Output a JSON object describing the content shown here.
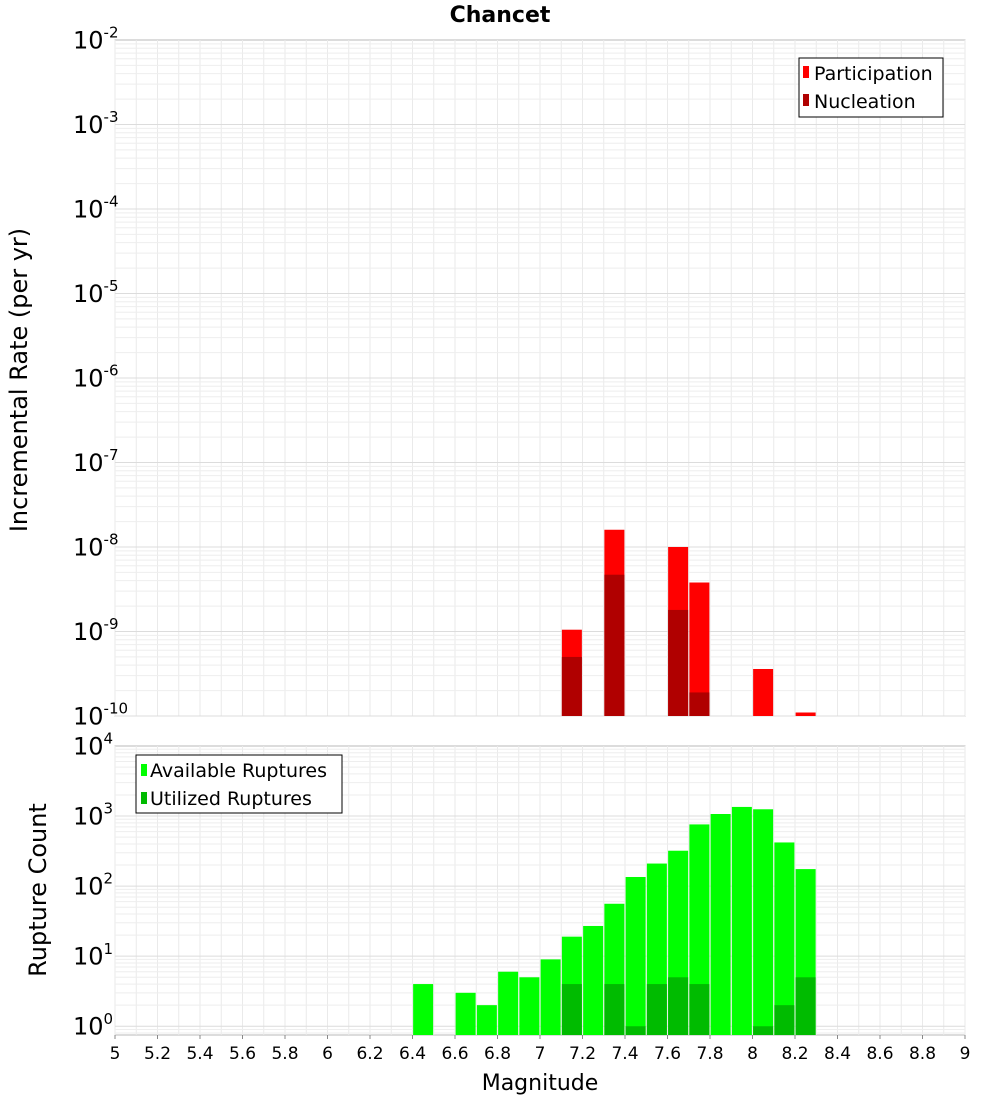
{
  "chart_data": [
    {
      "type": "bar",
      "title": "Chancet",
      "xlabel": "",
      "ylabel": "Incremental Rate (per yr)",
      "xlim": [
        5,
        9
      ],
      "ylim": [
        1e-10,
        0.01
      ],
      "yscale": "log",
      "grid": true,
      "legend_position": "top-right",
      "y_tick_labels": [
        {
          "base": "10",
          "exp": "-10"
        },
        {
          "base": "10",
          "exp": "-9"
        },
        {
          "base": "10",
          "exp": "-8"
        },
        {
          "base": "10",
          "exp": "-7"
        },
        {
          "base": "10",
          "exp": "-6"
        },
        {
          "base": "10",
          "exp": "-5"
        },
        {
          "base": "10",
          "exp": "-4"
        },
        {
          "base": "10",
          "exp": "-3"
        },
        {
          "base": "10",
          "exp": "-2"
        }
      ],
      "series": [
        {
          "name": "Participation",
          "color": "#ff0000",
          "x": [
            7.15,
            7.35,
            7.65,
            7.75,
            8.05,
            8.25
          ],
          "values": [
            1.05e-09,
            1.6e-08,
            1e-08,
            3.8e-09,
            3.6e-10,
            1.1e-10
          ]
        },
        {
          "name": "Nucleation",
          "color": "#b00000",
          "x": [
            7.15,
            7.35,
            7.65,
            7.75
          ],
          "values": [
            5e-10,
            4.7e-09,
            1.8e-09,
            1.9e-10
          ]
        }
      ]
    },
    {
      "type": "bar",
      "title": "",
      "xlabel": "Magnitude",
      "ylabel": "Rupture Count",
      "xlim": [
        5,
        9
      ],
      "ylim": [
        0.75,
        10000
      ],
      "yscale": "log",
      "grid": true,
      "legend_position": "top-left",
      "x_ticks": [
        "5",
        "5.2",
        "5.4",
        "5.6",
        "5.8",
        "6",
        "6.2",
        "6.4",
        "6.6",
        "6.8",
        "7",
        "7.2",
        "7.4",
        "7.6",
        "7.8",
        "8",
        "8.2",
        "8.4",
        "8.6",
        "8.8",
        "9"
      ],
      "y_tick_labels": [
        {
          "base": "10",
          "exp": "0"
        },
        {
          "base": "10",
          "exp": "1"
        },
        {
          "base": "10",
          "exp": "2"
        },
        {
          "base": "10",
          "exp": "3"
        },
        {
          "base": "10",
          "exp": "4"
        }
      ],
      "series": [
        {
          "name": "Available Ruptures",
          "color": "#00ff00",
          "x": [
            6.45,
            6.65,
            6.75,
            6.85,
            6.95,
            7.05,
            7.15,
            7.25,
            7.35,
            7.45,
            7.55,
            7.65,
            7.75,
            7.85,
            7.95,
            8.05,
            8.15,
            8.25
          ],
          "values": [
            4,
            3,
            2,
            6,
            5,
            9,
            19,
            27,
            56,
            135,
            210,
            320,
            760,
            1070,
            1350,
            1250,
            420,
            175
          ]
        },
        {
          "name": "Utilized Ruptures",
          "color": "#00bb00",
          "x": [
            7.15,
            7.35,
            7.45,
            7.55,
            7.65,
            7.75,
            8.05,
            8.15,
            8.25
          ],
          "values": [
            4,
            4,
            1,
            4,
            5,
            4,
            1,
            2,
            5
          ]
        }
      ]
    }
  ]
}
